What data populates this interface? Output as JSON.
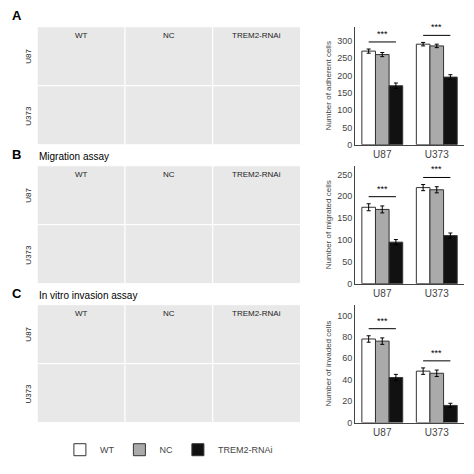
{
  "chart_data": [
    {
      "type": "bar",
      "title": "A",
      "ylabel": "Number of adherent cells",
      "categories": [
        "U87",
        "U373"
      ],
      "series": [
        {
          "name": "WT",
          "color": "#ffffff",
          "values": [
            270,
            290
          ],
          "errors": [
            6,
            5
          ]
        },
        {
          "name": "NC",
          "color": "#aaaaaa",
          "values": [
            260,
            285
          ],
          "errors": [
            6,
            5
          ]
        },
        {
          "name": "TREM2-RNAi",
          "color": "#111111",
          "values": [
            170,
            195
          ],
          "errors": [
            8,
            7
          ]
        }
      ],
      "ylim": [
        0,
        340
      ],
      "yticks": [
        0,
        50,
        100,
        150,
        200,
        250,
        300
      ],
      "grid": false,
      "legend": "bottom",
      "annotations": [
        {
          "text": "***",
          "category": "U87"
        },
        {
          "text": "***",
          "category": "U373"
        }
      ],
      "column_labels": [
        "WT",
        "NC",
        "TREM2-RNAi"
      ],
      "row_labels": [
        "U87",
        "U373"
      ]
    },
    {
      "type": "bar",
      "title": "B",
      "subtitle": "Migration assay",
      "ylabel": "Number of migrated cells",
      "categories": [
        "U87",
        "U373"
      ],
      "series": [
        {
          "name": "WT",
          "color": "#ffffff",
          "values": [
            175,
            220
          ],
          "errors": [
            8,
            7
          ]
        },
        {
          "name": "NC",
          "color": "#aaaaaa",
          "values": [
            170,
            215
          ],
          "errors": [
            8,
            7
          ]
        },
        {
          "name": "TREM2-RNAi",
          "color": "#111111",
          "values": [
            95,
            110
          ],
          "errors": [
            6,
            6
          ]
        }
      ],
      "ylim": [
        0,
        270
      ],
      "yticks": [
        0,
        50,
        100,
        150,
        200,
        250
      ],
      "grid": false,
      "legend": "bottom",
      "annotations": [
        {
          "text": "***",
          "category": "U87"
        },
        {
          "text": "***",
          "category": "U373"
        }
      ],
      "column_labels": [
        "WT",
        "NC",
        "TREM2-RNAi"
      ],
      "row_labels": [
        "U87",
        "U373"
      ]
    },
    {
      "type": "bar",
      "title": "C",
      "subtitle": "In vitro invasion assay",
      "ylabel": "Number of invaded cells",
      "categories": [
        "U87",
        "U373"
      ],
      "series": [
        {
          "name": "WT",
          "color": "#ffffff",
          "values": [
            78,
            48
          ],
          "errors": [
            3,
            3
          ]
        },
        {
          "name": "NC",
          "color": "#aaaaaa",
          "values": [
            76,
            46
          ],
          "errors": [
            3,
            3
          ]
        },
        {
          "name": "TREM2-RNAi",
          "color": "#111111",
          "values": [
            42,
            16
          ],
          "errors": [
            3,
            2
          ]
        }
      ],
      "ylim": [
        0,
        110
      ],
      "yticks": [
        0,
        20,
        40,
        60,
        80,
        100
      ],
      "grid": false,
      "legend": "bottom",
      "annotations": [
        {
          "text": "***",
          "category": "U87"
        },
        {
          "text": "***",
          "category": "U373"
        }
      ],
      "column_labels": [
        "WT",
        "NC",
        "TREM2-RNAi"
      ],
      "row_labels": [
        "U87",
        "U373"
      ]
    }
  ]
}
